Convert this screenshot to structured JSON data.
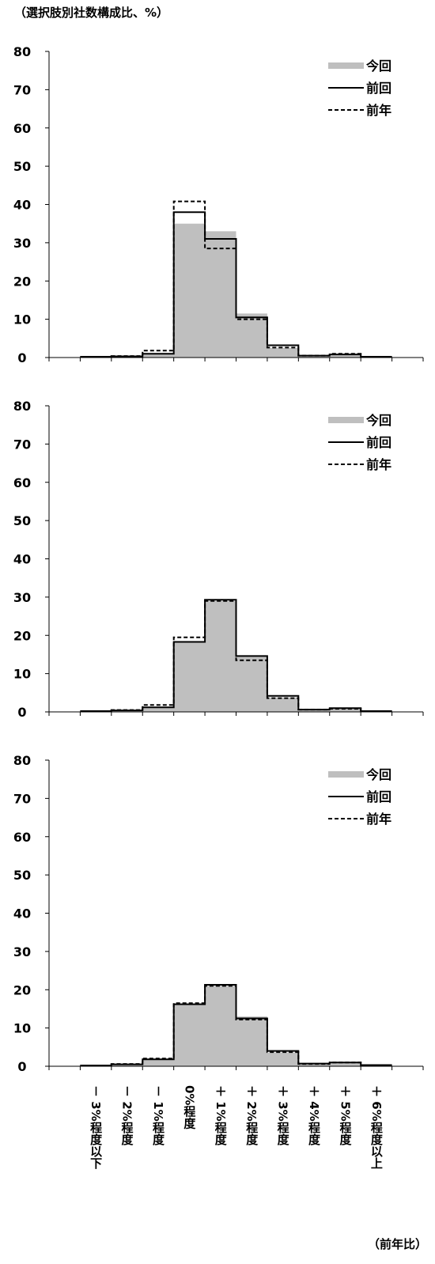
{
  "unit_label": "（選択肢別社数構成比、%）",
  "footer_label": "（前年比）",
  "chart_data": [
    {
      "type": "area",
      "ylim": [
        0,
        80
      ],
      "yticks": [
        0,
        10,
        20,
        30,
        40,
        50,
        60,
        70,
        80
      ],
      "categories": [
        "－ 3%程度以下",
        "－ 2%程度",
        "－ 1%程度",
        "0%程度",
        "＋ 1%程度",
        "＋ 2%程度",
        "＋ 3%程度",
        "＋ 4%程度",
        "＋ 5%程度",
        "＋ 6%程度以上"
      ],
      "legend": {
        "position": "top-right"
      },
      "series": [
        {
          "name": "今回",
          "style": "fill",
          "color": "#bfbfbf",
          "values": [
            0.2,
            0.3,
            1.0,
            35.0,
            33.0,
            11.5,
            2.5,
            0.5,
            0.8,
            0.2
          ]
        },
        {
          "name": "前回",
          "style": "solid",
          "color": "#000000",
          "values": [
            0.2,
            0.3,
            1.0,
            38.0,
            31.0,
            10.5,
            3.2,
            0.5,
            0.8,
            0.2
          ]
        },
        {
          "name": "前年",
          "style": "dashed",
          "color": "#000000",
          "values": [
            0.2,
            0.4,
            1.8,
            40.8,
            28.5,
            10.0,
            2.6,
            0.5,
            1.0,
            0.2
          ]
        }
      ]
    },
    {
      "type": "area",
      "ylim": [
        0,
        80
      ],
      "yticks": [
        0,
        10,
        20,
        30,
        40,
        50,
        60,
        70,
        80
      ],
      "categories": [
        "－ 3%程度以下",
        "－ 2%程度",
        "－ 1%程度",
        "0%程度",
        "＋ 1%程度",
        "＋ 2%程度",
        "＋ 3%程度",
        "＋ 4%程度",
        "＋ 5%程度",
        "＋ 6%程度以上"
      ],
      "legend": {
        "position": "top-right"
      },
      "series": [
        {
          "name": "今回",
          "style": "fill",
          "color": "#bfbfbf",
          "values": [
            0.2,
            0.4,
            1.2,
            18.5,
            29.0,
            14.5,
            3.8,
            0.6,
            1.0,
            0.2
          ]
        },
        {
          "name": "前回",
          "style": "solid",
          "color": "#000000",
          "values": [
            0.2,
            0.4,
            1.2,
            18.3,
            29.3,
            14.6,
            4.2,
            0.6,
            1.0,
            0.2
          ]
        },
        {
          "name": "前年",
          "style": "dashed",
          "color": "#000000",
          "values": [
            0.2,
            0.5,
            1.8,
            19.5,
            29.0,
            13.5,
            3.6,
            0.6,
            0.8,
            0.2
          ]
        }
      ]
    },
    {
      "type": "area",
      "ylim": [
        0,
        80
      ],
      "yticks": [
        0,
        10,
        20,
        30,
        40,
        50,
        60,
        70,
        80
      ],
      "categories": [
        "－ 3%程度以下",
        "－ 2%程度",
        "－ 1%程度",
        "0%程度",
        "＋ 1%程度",
        "＋ 2%程度",
        "＋ 3%程度",
        "＋ 4%程度",
        "＋ 5%程度",
        "＋ 6%程度以上"
      ],
      "legend": {
        "position": "top-right"
      },
      "series": [
        {
          "name": "今回",
          "style": "fill",
          "color": "#bfbfbf",
          "values": [
            0.2,
            0.5,
            1.8,
            16.0,
            21.0,
            13.0,
            3.6,
            0.7,
            0.9,
            0.3
          ]
        },
        {
          "name": "前回",
          "style": "solid",
          "color": "#000000",
          "values": [
            0.2,
            0.5,
            1.8,
            16.2,
            21.3,
            12.5,
            4.0,
            0.7,
            1.0,
            0.3
          ]
        },
        {
          "name": "前年",
          "style": "dashed",
          "color": "#000000",
          "values": [
            0.2,
            0.6,
            2.0,
            16.5,
            21.0,
            12.2,
            3.7,
            0.6,
            1.0,
            0.3
          ]
        }
      ]
    }
  ]
}
